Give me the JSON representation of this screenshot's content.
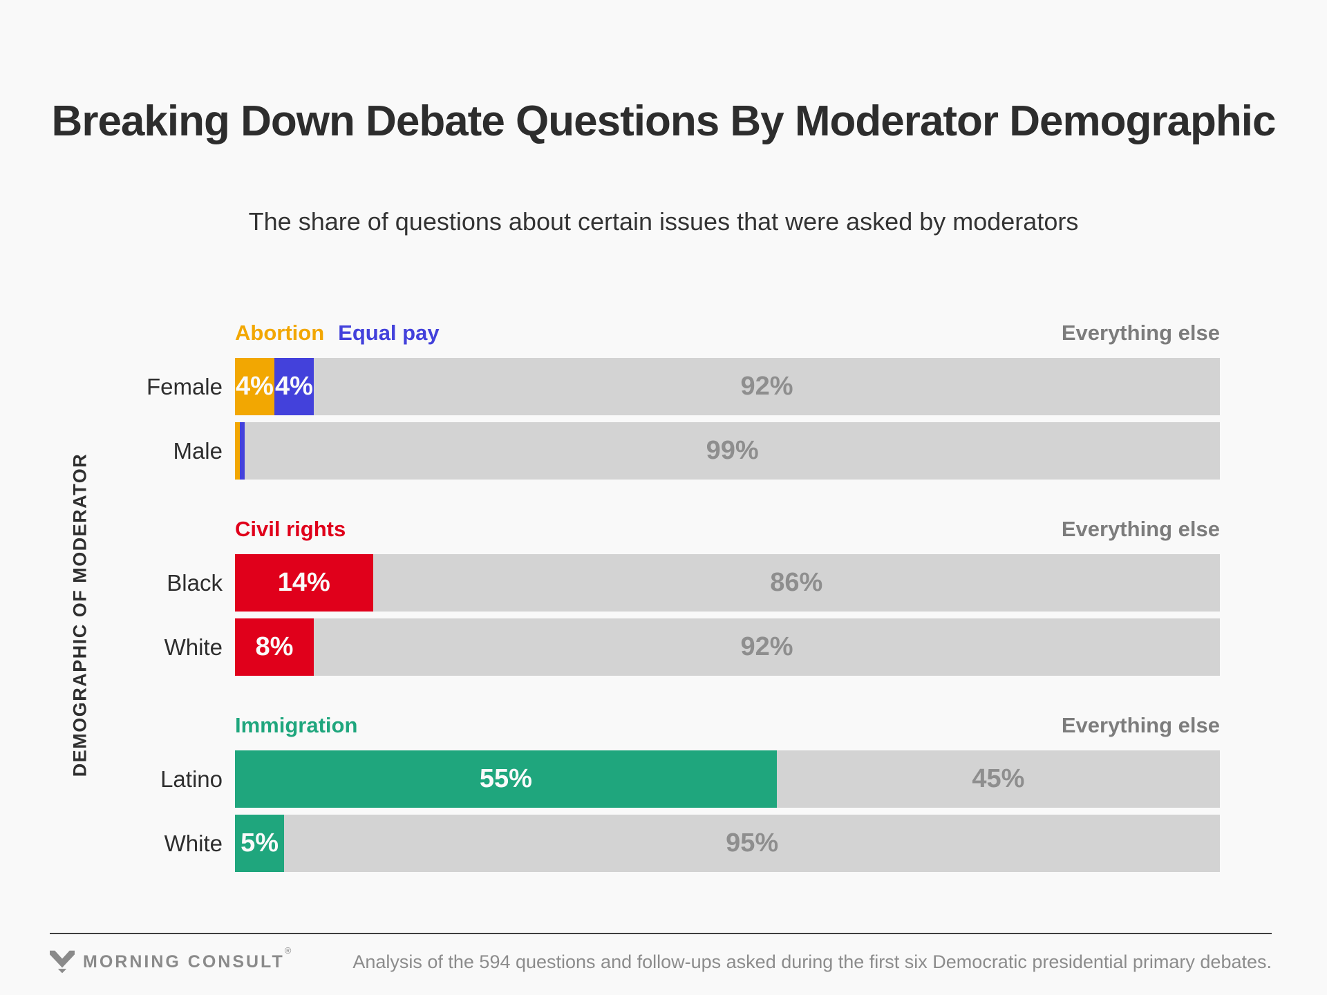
{
  "header": {
    "title": "Breaking Down Debate Questions By Moderator Demographic",
    "subtitle": "The share of questions about certain issues that were asked by moderators"
  },
  "chart": {
    "axis_label": "DEMOGRAPHIC OF MODERATOR"
  },
  "colors": {
    "background": "#F9F9F9",
    "abortion": "#F2A702",
    "equal_pay": "#4341DB",
    "civil_rights": "#E0001B",
    "immigration": "#1FA67D",
    "everything_else_bar": "#D3D3D3",
    "everything_else_text": "#8E8E8E",
    "everything_else_label": "#7C7C7C"
  },
  "chart_data": {
    "type": "bar",
    "orientation": "horizontal",
    "stacked": true,
    "unit": "percent",
    "title": "Breaking Down Debate Questions By Moderator Demographic",
    "subtitle": "The share of questions about certain issues that were asked by moderators",
    "ylabel": "DEMOGRAPHIC OF MODERATOR",
    "xlim": [
      0,
      100
    ],
    "grid": false,
    "groups": [
      {
        "issues": [
          {
            "name": "Abortion",
            "color": "#F2A702"
          },
          {
            "name": "Equal pay",
            "color": "#4341DB"
          }
        ],
        "other_label": "Everything else",
        "rows": [
          {
            "category": "Female",
            "segments": [
              {
                "series": "Abortion",
                "value": 4,
                "label": "4%",
                "color": "#F2A702"
              },
              {
                "series": "Equal pay",
                "value": 4,
                "label": "4%",
                "color": "#4341DB"
              },
              {
                "series": "Everything else",
                "value": 92,
                "label": "92%",
                "color": "#D3D3D3"
              }
            ]
          },
          {
            "category": "Male",
            "segments": [
              {
                "series": "Abortion",
                "value": 0.5,
                "label": "",
                "color": "#F2A702"
              },
              {
                "series": "Equal pay",
                "value": 0.5,
                "label": "",
                "color": "#4341DB"
              },
              {
                "series": "Everything else",
                "value": 99,
                "label": "99%",
                "color": "#D3D3D3"
              }
            ]
          }
        ]
      },
      {
        "issues": [
          {
            "name": "Civil rights",
            "color": "#E0001B"
          }
        ],
        "other_label": "Everything else",
        "rows": [
          {
            "category": "Black",
            "segments": [
              {
                "series": "Civil rights",
                "value": 14,
                "label": "14%",
                "color": "#E0001B"
              },
              {
                "series": "Everything else",
                "value": 86,
                "label": "86%",
                "color": "#D3D3D3"
              }
            ]
          },
          {
            "category": "White",
            "segments": [
              {
                "series": "Civil rights",
                "value": 8,
                "label": "8%",
                "color": "#E0001B"
              },
              {
                "series": "Everything else",
                "value": 92,
                "label": "92%",
                "color": "#D3D3D3"
              }
            ]
          }
        ]
      },
      {
        "issues": [
          {
            "name": "Immigration",
            "color": "#1FA67D"
          }
        ],
        "other_label": "Everything else",
        "rows": [
          {
            "category": "Latino",
            "segments": [
              {
                "series": "Immigration",
                "value": 55,
                "label": "55%",
                "color": "#1FA67D"
              },
              {
                "series": "Everything else",
                "value": 45,
                "label": "45%",
                "color": "#D3D3D3"
              }
            ]
          },
          {
            "category": "White",
            "segments": [
              {
                "series": "Immigration",
                "value": 5,
                "label": "5%",
                "color": "#1FA67D"
              },
              {
                "series": "Everything else",
                "value": 95,
                "label": "95%",
                "color": "#D3D3D3"
              }
            ]
          }
        ]
      }
    ]
  },
  "footer": {
    "brand": "MORNING CONSULT",
    "registered": "®",
    "source": "Analysis of the 594 questions and follow-ups asked during the first six Democratic presidential primary debates."
  }
}
